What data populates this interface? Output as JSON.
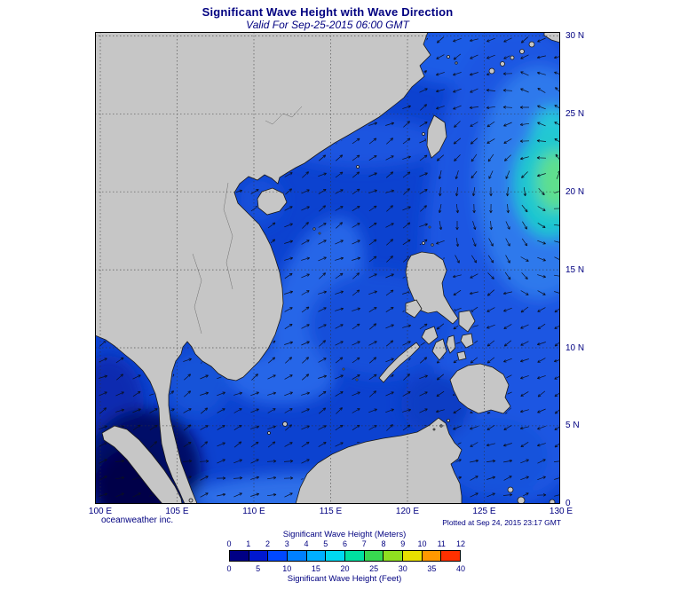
{
  "header": {
    "title": "Significant Wave Height with Wave Direction",
    "subtitle": "Valid For Sep-25-2015 06:00 GMT"
  },
  "map": {
    "lon_labels": [
      "100 E",
      "105 E",
      "110 E",
      "115 E",
      "120 E",
      "125 E",
      "130 E"
    ],
    "lat_labels": [
      "30 N",
      "25 N",
      "20 N",
      "15 N",
      "10 N",
      "5 N",
      "0"
    ],
    "ocean_color": "#0c42d0",
    "land_color": "#c6c6c6",
    "coast_color": "#1a1a1a",
    "grid_color": "#303030",
    "arrow_color": "#0b1020"
  },
  "footer": {
    "credit": "oceanweather inc.",
    "plotted": "Plotted at Sep 24, 2015 23:17 GMT"
  },
  "legend": {
    "meters_title": "Significant Wave Height (Meters)",
    "feet_title": "Significant Wave Height (Feet)",
    "meters_ticks": [
      "0",
      "1",
      "2",
      "3",
      "4",
      "5",
      "6",
      "7",
      "8",
      "9",
      "10",
      "11",
      "12"
    ],
    "feet_ticks": [
      "0",
      "5",
      "10",
      "15",
      "20",
      "25",
      "30",
      "35",
      "40"
    ],
    "colors": [
      "#000085",
      "#0018d0",
      "#0048ff",
      "#0080ff",
      "#00b0ff",
      "#00d8f0",
      "#00e0a0",
      "#38d850",
      "#90e020",
      "#e8e000",
      "#ff9800",
      "#ff3000"
    ]
  },
  "text_color": "#000080"
}
